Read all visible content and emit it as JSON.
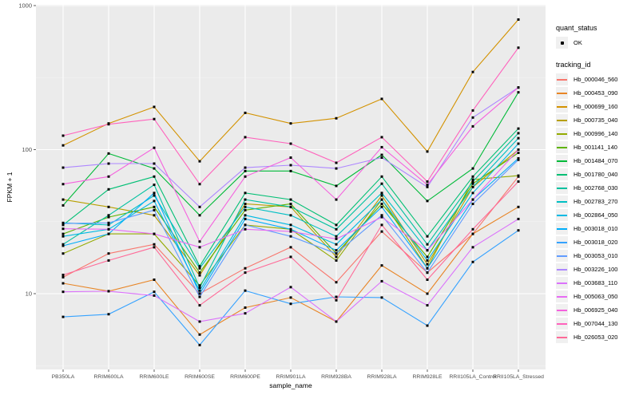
{
  "figure": {
    "y_axis": {
      "label": "FPKM + 1"
    },
    "x_axis": {
      "label": "sample_name"
    },
    "legend": {
      "quant_status": {
        "title": "quant_status",
        "items": [
          {
            "label": "OK",
            "marker": "black-point"
          }
        ]
      },
      "tracking_id": {
        "title": "tracking_id"
      }
    },
    "colors": {
      "panel_bg": "#ebebeb",
      "grid_major": "#ffffff",
      "grid_minor": "#f5f5f5",
      "point": "#000000",
      "tick_text": "#4d4d4d",
      "axis_title_text": "#000000",
      "legend_key_bg": "#f0f0f0",
      "figure_bg": "#ffffff"
    }
  },
  "chart_data": {
    "type": "line",
    "title": "",
    "xlabel": "sample_name",
    "ylabel": "FPKM + 1",
    "y_scale": "log10",
    "y_ticks": [
      10,
      100,
      1000
    ],
    "y_minor_ticks": [
      3.162,
      31.62,
      316.2
    ],
    "ylim": [
      3,
      1000
    ],
    "grid": true,
    "legend_position": "right",
    "marker": "small black point on every value (quant_status = OK)",
    "categories": [
      "PB350LA",
      "RRIM600LA",
      "RRIM600LE",
      "RRIM600SE",
      "RRIM600PE",
      "RRIM901LA",
      "RRIM928BA",
      "RRIM928LA",
      "RRIM928LE",
      "RRII105LA_Control",
      "RRII105LA_Stressed"
    ],
    "series": [
      {
        "name": "Hb_000046_560",
        "color": "#F8766D",
        "values": [
          13,
          19,
          22,
          10,
          15,
          21,
          12,
          27,
          14,
          26,
          65
        ]
      },
      {
        "name": "Hb_000453_090",
        "color": "#E88526",
        "values": [
          11.8,
          10.4,
          12.5,
          5.2,
          8,
          9.4,
          6.4,
          15.7,
          10,
          26,
          40
        ]
      },
      {
        "name": "Hb_000699_160",
        "color": "#D39200",
        "values": [
          107,
          152,
          198,
          83,
          180,
          152,
          165,
          225,
          97,
          346,
          800
        ]
      },
      {
        "name": "Hb_000735_040",
        "color": "#B79F00",
        "values": [
          45,
          40,
          35,
          13.4,
          42,
          40,
          18,
          48,
          16,
          55,
          100
        ]
      },
      {
        "name": "Hb_000996_140",
        "color": "#93AA00",
        "values": [
          19,
          26,
          26,
          11.4,
          30,
          28,
          17,
          45,
          15,
          62,
          66
        ]
      },
      {
        "name": "Hb_001141_140",
        "color": "#5EB300",
        "values": [
          26,
          34,
          40,
          14,
          38,
          42,
          19,
          42,
          18,
          58,
          95
        ]
      },
      {
        "name": "Hb_001484_070",
        "color": "#00BA38",
        "values": [
          41,
          94,
          74,
          35,
          71,
          71,
          56,
          92,
          44,
          74,
          250
        ]
      },
      {
        "name": "Hb_001780_040",
        "color": "#00BF74",
        "values": [
          30,
          53,
          65,
          15.5,
          50,
          45,
          30,
          65,
          25,
          65,
          140
        ]
      },
      {
        "name": "Hb_002768_030",
        "color": "#00C19F",
        "values": [
          22,
          35,
          57,
          11,
          45,
          40,
          28,
          58,
          22,
          60,
          130
        ]
      },
      {
        "name": "Hb_002783_270",
        "color": "#00BFC4",
        "values": [
          31,
          30,
          48,
          15,
          40,
          35,
          25,
          50,
          20,
          55,
          120
        ]
      },
      {
        "name": "Hb_002864_050",
        "color": "#00B9E3",
        "values": [
          25,
          28,
          44,
          10.5,
          35,
          30,
          22,
          45,
          17,
          50,
          110
        ]
      },
      {
        "name": "Hb_003018_010",
        "color": "#00ADFA",
        "values": [
          21.5,
          26,
          50,
          10,
          33,
          28,
          20,
          40,
          15,
          45,
          87
        ]
      },
      {
        "name": "Hb_003018_020",
        "color": "#35A2FF",
        "values": [
          6.9,
          7.2,
          10.3,
          4.4,
          10.5,
          8.5,
          9.5,
          9.4,
          6,
          16.6,
          27.5
        ]
      },
      {
        "name": "Hb_003053_010",
        "color": "#619CFF",
        "values": [
          30.7,
          31,
          38,
          9.5,
          30,
          25,
          19,
          35,
          14,
          42,
          85
        ]
      },
      {
        "name": "Hb_003226_100",
        "color": "#AE87FF",
        "values": [
          75,
          80,
          80,
          40,
          75,
          78,
          74,
          88,
          55,
          167,
          270
        ]
      },
      {
        "name": "Hb_003683_110",
        "color": "#DB72FB",
        "values": [
          10.3,
          10.4,
          9.7,
          6.4,
          7.3,
          11.1,
          6.4,
          12.2,
          8.3,
          21,
          33
        ]
      },
      {
        "name": "Hb_005063_050",
        "color": "#E76BF3",
        "values": [
          28.2,
          28,
          26,
          21,
          28,
          27,
          24,
          34,
          20,
          45,
          100
        ]
      },
      {
        "name": "Hb_006925_040",
        "color": "#F562DE",
        "values": [
          57.6,
          65,
          103,
          23,
          65,
          88,
          45,
          104,
          57,
          145,
          270
        ]
      },
      {
        "name": "Hb_007044_130",
        "color": "#FF62BC",
        "values": [
          125,
          150,
          163,
          57.6,
          122,
          110,
          81,
          122,
          60,
          187,
          510
        ]
      },
      {
        "name": "Hb_026053_020",
        "color": "#FF6A98",
        "values": [
          13.5,
          17,
          21,
          8.3,
          14,
          18,
          9,
          30,
          12.5,
          28,
          60
        ]
      }
    ]
  }
}
